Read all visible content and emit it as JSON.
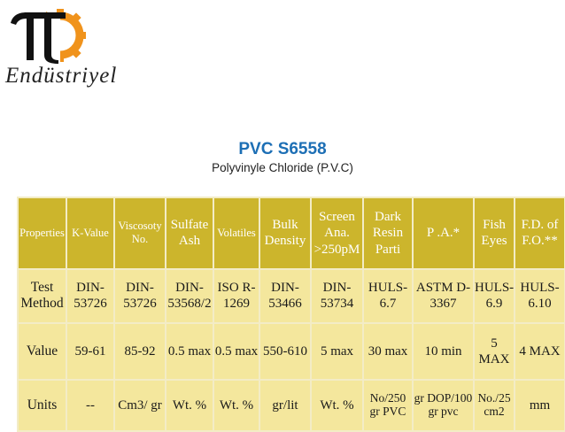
{
  "brand": {
    "name": "Endüstriyel"
  },
  "heading": {
    "title": "PVC S6558",
    "subtitle": "Polyvinyle Chloride (P.V.C)"
  },
  "colors": {
    "header_bg": "#ccb52c",
    "cell_bg": "#f4e79d",
    "title": "#1d6fb5",
    "logo_orange": "#f0931c"
  },
  "table": {
    "headers": [
      "Properties",
      "K-Value",
      "Viscosoty No.",
      "Sulfate Ash",
      "Volatiles",
      "Bulk Density",
      "Screen Ana. >250pM",
      "Dark Resin Parti",
      "P .A.*",
      "Fish Eyes",
      "F.D. of F.O.**"
    ],
    "rows": [
      [
        "Test Method",
        "DIN-53726",
        "DIN-53726",
        "DIN-53568/2",
        "ISO R-1269",
        "DIN-53466",
        "DIN-53734",
        "HULS-6.7",
        "ASTM D-3367",
        "HULS-6.9",
        "HULS-6.10"
      ],
      [
        "Value",
        "59-61",
        "85-92",
        "0.5 max",
        "0.5 max",
        "550-610",
        "5 max",
        "30 max",
        "10 min",
        "5 MAX",
        "4 MAX"
      ],
      [
        "Units",
        "--",
        "Cm3/ gr",
        "Wt. %",
        "Wt. %",
        "gr/lit",
        "Wt. %",
        "No/250 gr PVC",
        "gr DOP/100 gr pvc",
        "No./25 cm2",
        "mm"
      ]
    ]
  }
}
